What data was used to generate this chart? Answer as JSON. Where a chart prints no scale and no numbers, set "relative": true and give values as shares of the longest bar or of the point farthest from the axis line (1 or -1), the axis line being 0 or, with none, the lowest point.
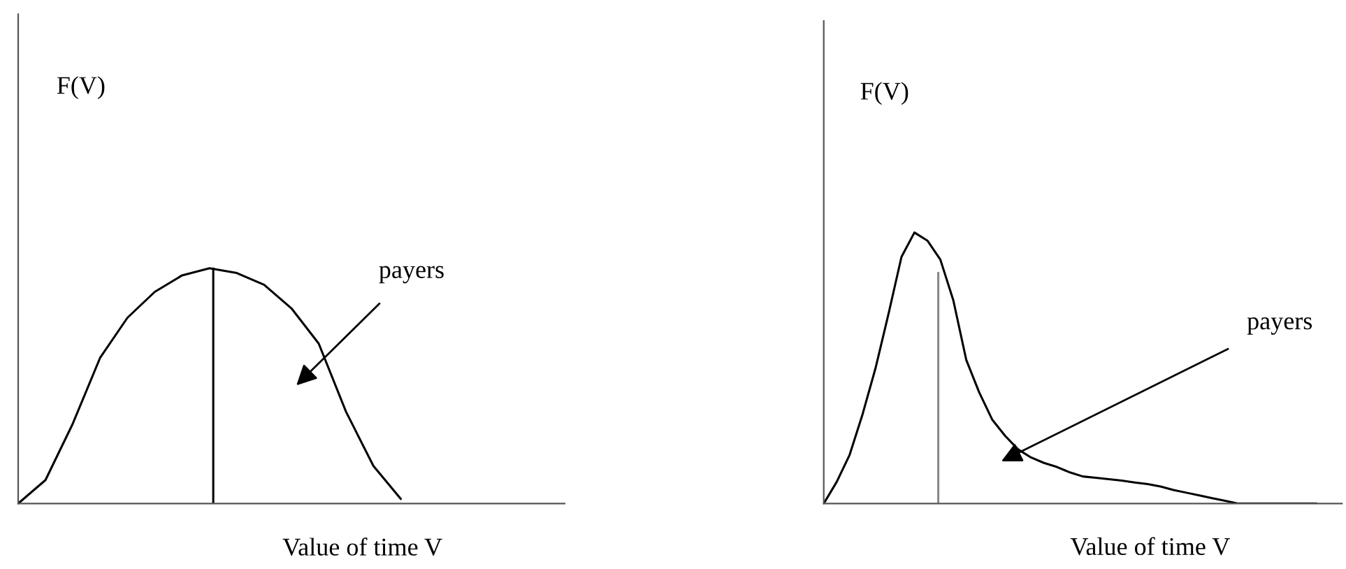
{
  "chart_data": [
    {
      "type": "line",
      "relative": true,
      "ylabel": "F(V)",
      "xlabel": "Value of time V",
      "marker": "none",
      "line_style": "solid",
      "categories": [
        null,
        null,
        null,
        null,
        null,
        null,
        null,
        null,
        null,
        null,
        null,
        null,
        null,
        null,
        null,
        null,
        null,
        null,
        null,
        null,
        null
      ],
      "series": [
        {
          "color": "#000000",
          "values": [
            0,
            0.1,
            0.34,
            0.62,
            0.79,
            0.9,
            0.97,
            1,
            0.98,
            0.93,
            0.83,
            0.68,
            0.39,
            0.16,
            0.02,
            null,
            null,
            null,
            null,
            null,
            null
          ]
        }
      ],
      "annotations": [
        "payers"
      ]
    },
    {
      "type": "line",
      "relative": true,
      "ylabel": "F(V)",
      "xlabel": "Value of time V",
      "marker": "none",
      "line_style": "solid",
      "categories": [
        null,
        null,
        null,
        null,
        null,
        null,
        null,
        null,
        null,
        null,
        null,
        null,
        null,
        null,
        null,
        null,
        null,
        null,
        null,
        null,
        null,
        null,
        null,
        null,
        null,
        null,
        null,
        null,
        null,
        null,
        null,
        null,
        null,
        null,
        null,
        null,
        null,
        null,
        null,
        null,
        null
      ],
      "series": [
        {
          "color": "#000000",
          "values": [
            0,
            0.08,
            0.18,
            0.33,
            0.5,
            0.7,
            0.91,
            1,
            0.97,
            0.9,
            0.75,
            0.53,
            0.41,
            0.31,
            0.25,
            0.2,
            0.17,
            0.15,
            0.135,
            0.115,
            0.1,
            0.095,
            0.09,
            0.085,
            0.078,
            0.072,
            0.063,
            0.05,
            0.04,
            0.03,
            0.02,
            0.01,
            0,
            0,
            0,
            0,
            0,
            0,
            0,
            null,
            null
          ]
        }
      ],
      "annotations": [
        "payers"
      ]
    }
  ]
}
